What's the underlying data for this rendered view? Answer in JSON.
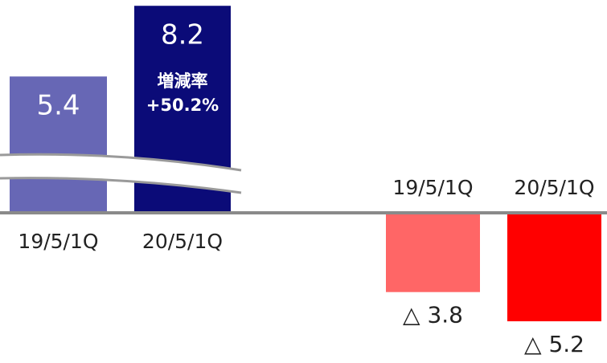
{
  "chart_data": [
    {
      "type": "bar",
      "categories": [
        "19/5/1Q",
        "20/5/1Q"
      ],
      "values": [
        5.4,
        8.2
      ],
      "colors": [
        "#6767b5",
        "#0b0b78"
      ],
      "ylim": [
        0,
        8.43
      ],
      "annotation": [
        "増減率",
        "+50.2%"
      ]
    },
    {
      "type": "bar",
      "categories": [
        "19/5/1Q",
        "20/5/1Q"
      ],
      "values": [
        -3.8,
        -5.2
      ],
      "value_labels": [
        "△ 3.8",
        "△ 5.2"
      ],
      "colors": [
        "#ff6666",
        "#ff0000"
      ],
      "ylim": [
        -7.2,
        0
      ]
    }
  ]
}
